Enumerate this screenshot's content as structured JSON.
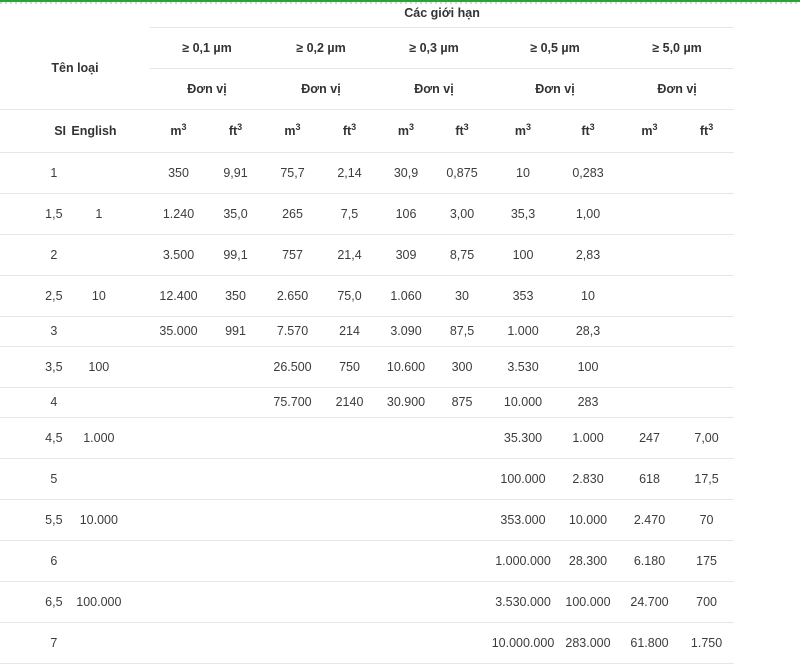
{
  "header": {
    "limits_title": "Các giới hạn",
    "class_name": "Tên loại",
    "sizes": [
      "≥ 0,1 µm",
      "≥ 0,2 µm",
      "≥ 0,3 µm",
      "≥ 0,5 µm",
      "≥ 5,0 µm"
    ],
    "unit_label": "Đơn vị",
    "si": "SI",
    "english": "English",
    "m_base": "m",
    "ft_base": "ft",
    "exp": "3"
  },
  "rows": [
    {
      "si": "1",
      "english": "",
      "v": [
        "350",
        "9,91",
        "75,7",
        "2,14",
        "30,9",
        "0,875",
        "10",
        "0,283",
        "",
        ""
      ]
    },
    {
      "si": "1,5",
      "english": "1",
      "v": [
        "1.240",
        "35,0",
        "265",
        "7,5",
        "106",
        "3,00",
        "35,3",
        "1,00",
        "",
        ""
      ]
    },
    {
      "si": "2",
      "english": "",
      "v": [
        "3.500",
        "99,1",
        "757",
        "21,4",
        "309",
        "8,75",
        "100",
        "2,83",
        "",
        ""
      ]
    },
    {
      "si": "2,5",
      "english": "10",
      "v": [
        "12.400",
        "350",
        "2.650",
        "75,0",
        "1.060",
        "30",
        "353",
        "10",
        "",
        ""
      ]
    },
    {
      "si": "3",
      "english": "",
      "v": [
        "35.000",
        "991",
        "7.570",
        "214",
        "3.090",
        "87,5",
        "1.000",
        "28,3",
        "",
        ""
      ]
    },
    {
      "si": "3,5",
      "english": "100",
      "v": [
        "",
        "",
        "26.500",
        "750",
        "10.600",
        "300",
        "3.530",
        "100",
        "",
        ""
      ]
    },
    {
      "si": "4",
      "english": "",
      "v": [
        "",
        "",
        "75.700",
        "2140",
        "30.900",
        "875",
        "10.000",
        "283",
        "",
        ""
      ]
    },
    {
      "si": "4,5",
      "english": "1.000",
      "v": [
        "",
        "",
        "",
        "",
        "",
        "",
        "35.300",
        "1.000",
        "247",
        "7,00"
      ]
    },
    {
      "si": "5",
      "english": "",
      "v": [
        "",
        "",
        "",
        "",
        "",
        "",
        "100.000",
        "2.830",
        "618",
        "17,5"
      ]
    },
    {
      "si": "5,5",
      "english": "10.000",
      "v": [
        "",
        "",
        "",
        "",
        "",
        "",
        "353.000",
        "10.000",
        "2.470",
        "70"
      ]
    },
    {
      "si": "6",
      "english": "",
      "v": [
        "",
        "",
        "",
        "",
        "",
        "",
        "1.000.000",
        "28.300",
        "6.180",
        "175"
      ]
    },
    {
      "si": "6,5",
      "english": "100.000",
      "v": [
        "",
        "",
        "",
        "",
        "",
        "",
        "3.530.000",
        "100.000",
        "24.700",
        "700"
      ]
    },
    {
      "si": "7",
      "english": "",
      "v": [
        "",
        "",
        "",
        "",
        "",
        "",
        "10.000.000",
        "283.000",
        "61.800",
        "1.750"
      ]
    }
  ]
}
